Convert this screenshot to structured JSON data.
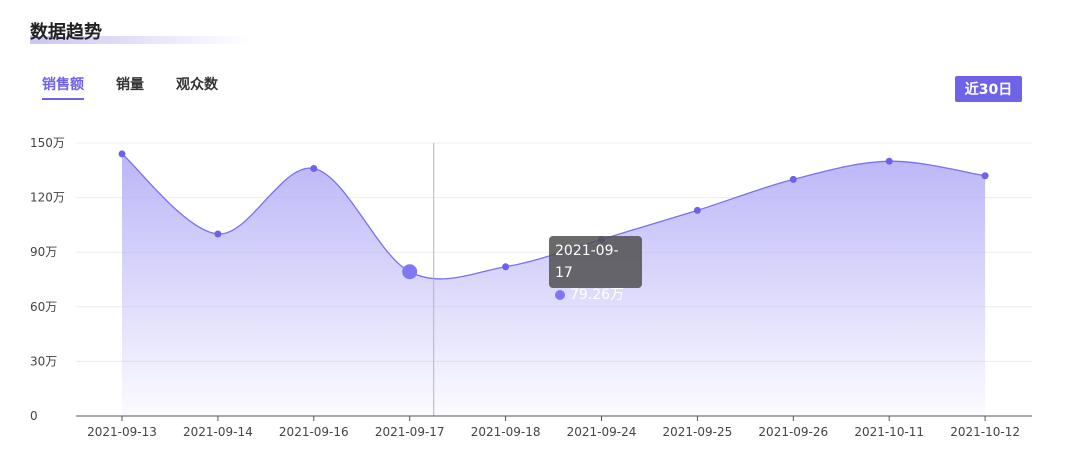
{
  "section": {
    "title": "数据趋势"
  },
  "tabs": [
    {
      "label": "销售额",
      "active": true
    },
    {
      "label": "销量",
      "active": false
    },
    {
      "label": "观众数",
      "active": false
    }
  ],
  "range_button": {
    "label": "近30日"
  },
  "tooltip": {
    "date": "2021-09-17",
    "value_label": "79.26万"
  },
  "colors": {
    "accent": "#6e63e8",
    "line": "#7a70ec",
    "area_top": "#b8b2f7"
  },
  "chart_data": {
    "type": "area",
    "categories": [
      "2021-09-13",
      "2021-09-14",
      "2021-09-16",
      "2021-09-17",
      "2021-09-18",
      "2021-09-24",
      "2021-09-25",
      "2021-09-26",
      "2021-10-11",
      "2021-10-12"
    ],
    "values": [
      144,
      100,
      136,
      79.26,
      82,
      97,
      113,
      130,
      140,
      132
    ],
    "y_ticks": [
      "0",
      "30万",
      "60万",
      "90万",
      "120万",
      "150万"
    ],
    "ylim": [
      0,
      150
    ],
    "grid": true,
    "highlight_category": "2021-09-17",
    "smooth": true
  }
}
